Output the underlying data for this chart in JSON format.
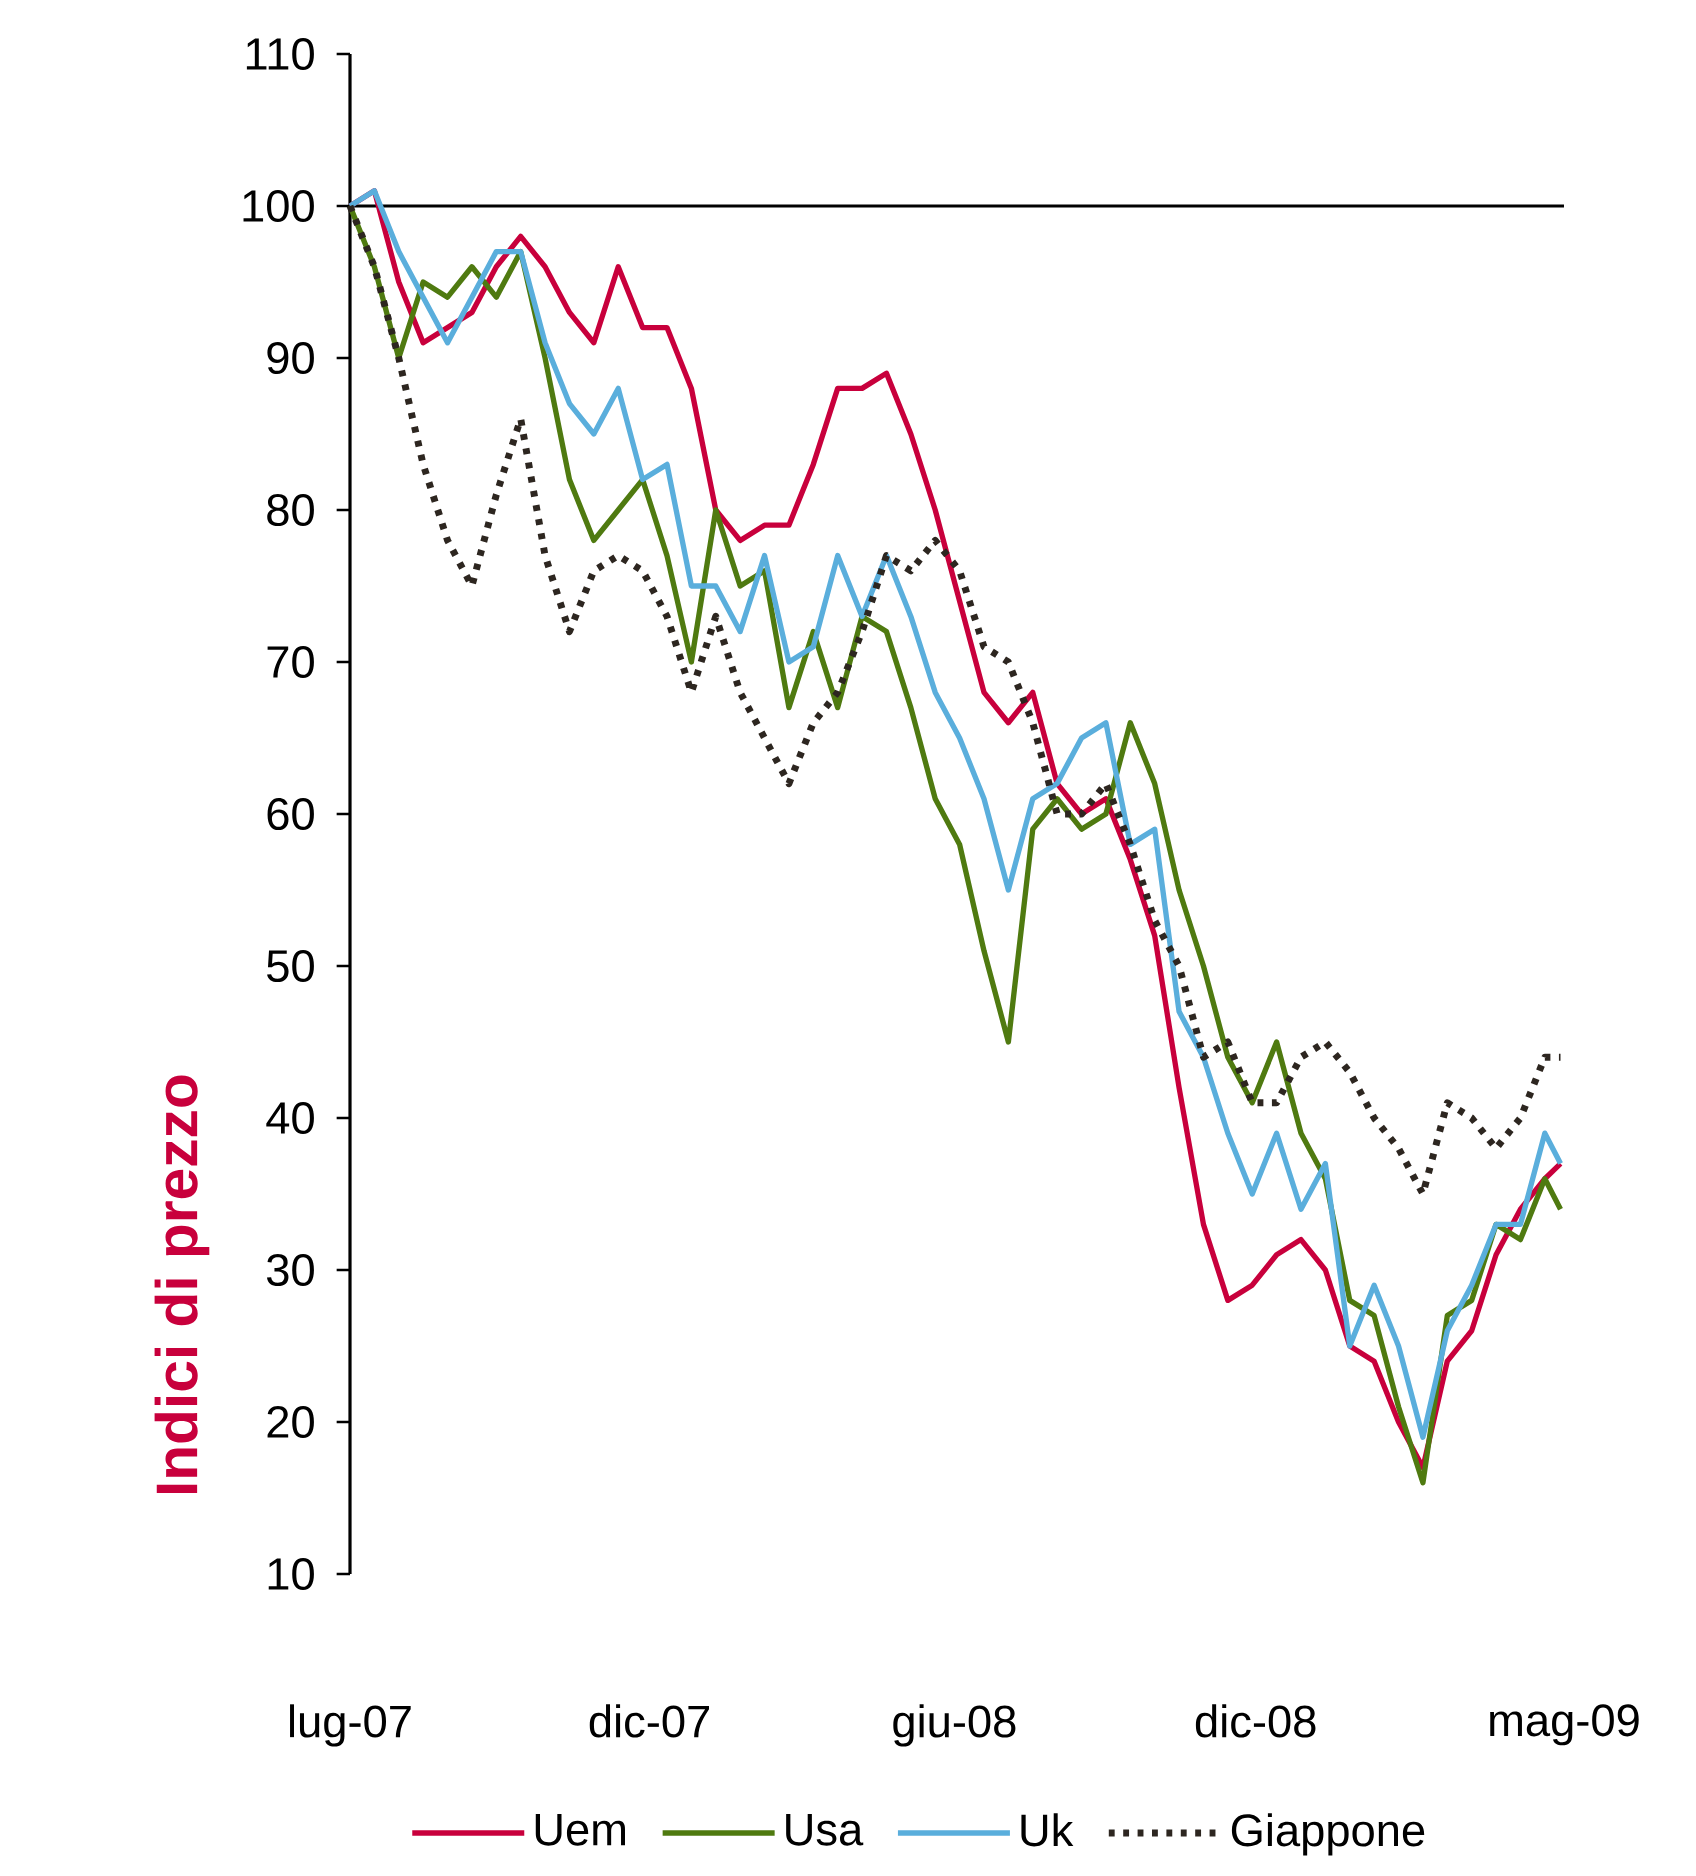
{
  "chart_data": {
    "type": "line",
    "ylabel": "Indici di prezzo",
    "x": [
      "2007-07-02",
      "2007-07-16",
      "2007-07-30",
      "2007-08-13",
      "2007-08-27",
      "2007-09-10",
      "2007-09-24",
      "2007-10-08",
      "2007-10-22",
      "2007-11-05",
      "2007-11-19",
      "2007-12-03",
      "2007-12-17",
      "2007-12-31",
      "2008-01-14",
      "2008-01-28",
      "2008-02-11",
      "2008-02-25",
      "2008-03-10",
      "2008-03-24",
      "2008-04-07",
      "2008-04-21",
      "2008-05-05",
      "2008-05-19",
      "2008-06-02",
      "2008-06-16",
      "2008-06-30",
      "2008-07-14",
      "2008-07-28",
      "2008-08-11",
      "2008-08-25",
      "2008-09-08",
      "2008-09-22",
      "2008-10-06",
      "2008-10-20",
      "2008-11-03",
      "2008-11-17",
      "2008-12-01",
      "2008-12-15",
      "2008-12-29",
      "2009-01-12",
      "2009-01-26",
      "2009-02-09",
      "2009-02-23",
      "2009-03-09",
      "2009-03-23",
      "2009-04-06",
      "2009-04-20",
      "2009-05-04",
      "2009-05-18",
      "2009-05-27"
    ],
    "series": [
      {
        "name": "Uem",
        "color": "#c8003c",
        "line_style": "solid",
        "values": [
          100,
          101,
          95,
          91,
          92,
          93,
          96,
          98,
          96,
          93,
          91,
          96,
          92,
          92,
          88,
          80,
          78,
          79,
          79,
          83,
          88,
          88,
          89,
          85,
          80,
          74,
          68,
          66,
          68,
          62,
          60,
          61,
          57,
          52,
          42,
          33,
          28,
          29,
          31,
          32,
          30,
          25,
          24,
          20,
          17,
          24,
          26,
          31,
          34,
          36,
          37
        ]
      },
      {
        "name": "Usa",
        "color": "#4f7a10",
        "line_style": "solid",
        "values": [
          100,
          96,
          90,
          95,
          94,
          96,
          94,
          97,
          90,
          82,
          78,
          80,
          82,
          77,
          70,
          80,
          75,
          76,
          67,
          72,
          67,
          73,
          72,
          67,
          61,
          58,
          51,
          45,
          59,
          61,
          59,
          60,
          66,
          62,
          55,
          50,
          44,
          41,
          45,
          39,
          36,
          28,
          27,
          21,
          16,
          27,
          28,
          33,
          32,
          36,
          34
        ]
      },
      {
        "name": "Uk",
        "color": "#5aaedc",
        "line_style": "solid",
        "values": [
          100,
          101,
          97,
          94,
          91,
          94,
          97,
          97,
          91,
          87,
          85,
          88,
          82,
          83,
          75,
          75,
          72,
          77,
          70,
          71,
          77,
          73,
          77,
          73,
          68,
          65,
          61,
          55,
          61,
          62,
          65,
          66,
          58,
          59,
          47,
          44,
          39,
          35,
          39,
          34,
          37,
          25,
          29,
          25,
          19,
          26,
          29,
          33,
          33,
          39,
          37
        ]
      },
      {
        "name": "Giappone",
        "color": "#2d2620",
        "line_style": "dotted",
        "values": [
          100,
          96,
          90,
          83,
          78,
          75,
          81,
          86,
          77,
          72,
          76,
          77,
          76,
          73,
          68,
          73,
          68,
          65,
          62,
          66,
          68,
          72,
          77,
          76,
          78,
          76,
          71,
          70,
          66,
          60,
          60,
          62,
          58,
          53,
          50,
          44,
          45,
          41,
          41,
          44,
          45,
          43,
          40,
          38,
          35,
          41,
          40,
          38,
          40,
          44,
          44
        ]
      }
    ],
    "marker": "none",
    "xlim": [
      "2007-07-02",
      "2009-05-29"
    ],
    "xticks": [
      {
        "value": "2007-07-02",
        "label": "lug-07"
      },
      {
        "value": "2007-12-21",
        "label": "dic-07"
      },
      {
        "value": "2008-06-13",
        "label": "giu-08"
      },
      {
        "value": "2008-12-03",
        "label": "dic-08"
      },
      {
        "value": "2009-05-29",
        "label": "mag-09"
      }
    ],
    "ylim": [
      10,
      110
    ],
    "yticks": [
      10,
      20,
      30,
      40,
      50,
      60,
      70,
      80,
      90,
      100,
      110
    ],
    "ref_lines": [
      {
        "axis": "y",
        "value": 100
      }
    ],
    "legend": "bottom"
  }
}
